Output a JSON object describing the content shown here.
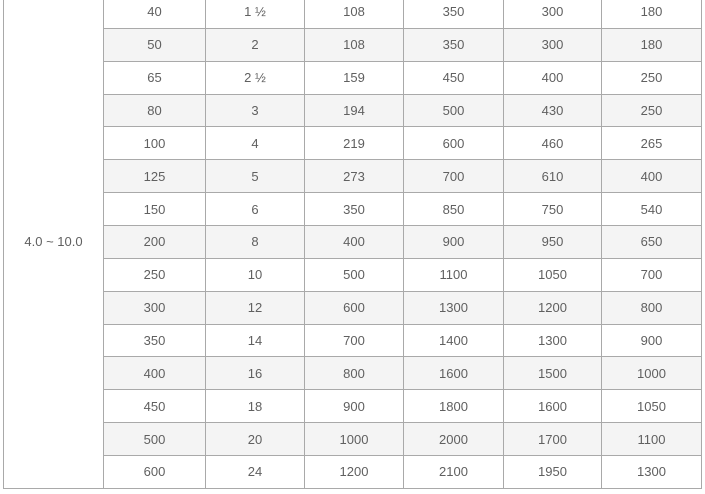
{
  "colors": {
    "border": "#a9a9a9",
    "stripe": "#f4f4f4",
    "text": "#606060",
    "background": "#ffffff"
  },
  "chart_data": {
    "type": "table",
    "merged_row_label": "4.0 ~ 10.0",
    "layout_hints": {
      "merged_label_column": "first column, single cell spanning all visible rows",
      "striping": "alternate rows shaded light gray starting with second row",
      "grid": "full gridlines",
      "clipping": "top edge of first row and table top border cut off by viewport"
    },
    "rows": [
      [
        "40",
        "1 ½",
        "108",
        "350",
        "300",
        "180"
      ],
      [
        "50",
        "2",
        "108",
        "350",
        "300",
        "180"
      ],
      [
        "65",
        "2 ½",
        "159",
        "450",
        "400",
        "250"
      ],
      [
        "80",
        "3",
        "194",
        "500",
        "430",
        "250"
      ],
      [
        "100",
        "4",
        "219",
        "600",
        "460",
        "265"
      ],
      [
        "125",
        "5",
        "273",
        "700",
        "610",
        "400"
      ],
      [
        "150",
        "6",
        "350",
        "850",
        "750",
        "540"
      ],
      [
        "200",
        "8",
        "400",
        "900",
        "950",
        "650"
      ],
      [
        "250",
        "10",
        "500",
        "1100",
        "1050",
        "700"
      ],
      [
        "300",
        "12",
        "600",
        "1300",
        "1200",
        "800"
      ],
      [
        "350",
        "14",
        "700",
        "1400",
        "1300",
        "900"
      ],
      [
        "400",
        "16",
        "800",
        "1600",
        "1500",
        "1000"
      ],
      [
        "450",
        "18",
        "900",
        "1800",
        "1600",
        "1050"
      ],
      [
        "500",
        "20",
        "1000",
        "2000",
        "1700",
        "1100"
      ],
      [
        "600",
        "24",
        "1200",
        "2100",
        "1950",
        "1300"
      ]
    ]
  }
}
